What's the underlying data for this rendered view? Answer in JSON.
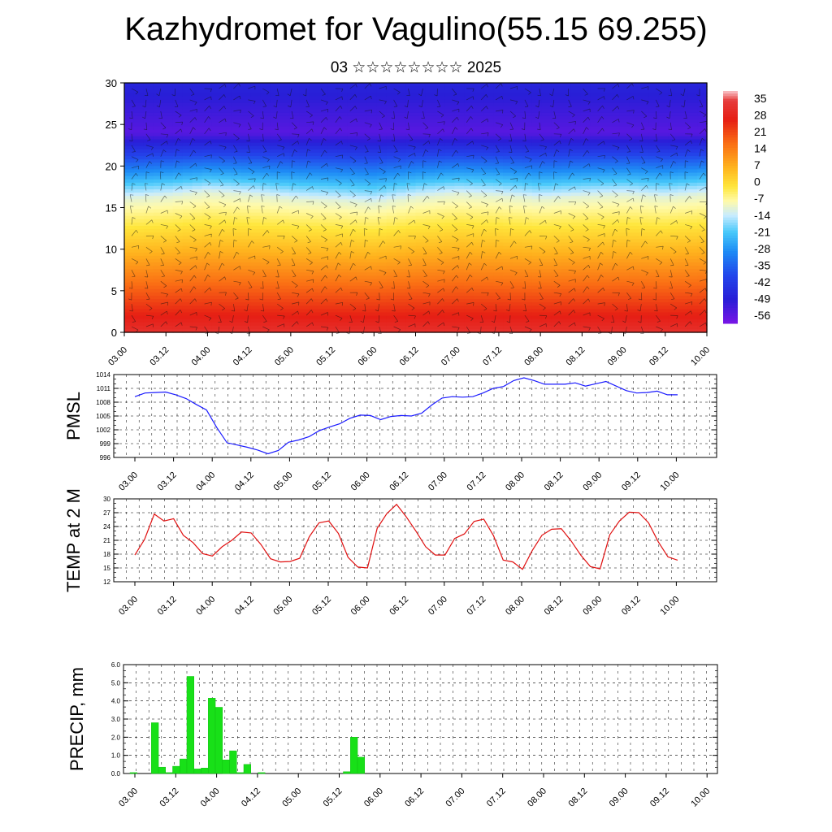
{
  "header": {
    "title": "Kazhydromet for Vagulino(55.15 69.255)",
    "subtitle": "03 ☆☆☆☆☆☆☆☆ 2025"
  },
  "time_labels": [
    "03.00",
    "03.12",
    "04.00",
    "04.12",
    "05.00",
    "05.12",
    "06.00",
    "06.12",
    "07.00",
    "07.12",
    "08.00",
    "08.12",
    "09.00",
    "09.12",
    "10.00"
  ],
  "chart_data": [
    {
      "type": "heatmap",
      "ylim": [
        0,
        30
      ],
      "yticks": [
        0,
        5,
        10,
        15,
        20,
        25,
        30
      ],
      "colorbar_labels": [
        "35",
        "28",
        "21",
        "14",
        "7",
        "0",
        "-7",
        "-14",
        "-21",
        "-28",
        "-35",
        "-42",
        "-49",
        "-56"
      ],
      "colorbar_range": [
        -60,
        37
      ],
      "colors": {
        "cold": "#2a1fd6",
        "mid": "#ffff70",
        "warm": "#e61010"
      },
      "freezing_level_km": [
        16.0,
        16.3,
        16.8,
        16.5,
        16.0,
        15.8,
        15.5,
        16.2,
        16.6,
        16.4,
        16.0,
        16.3,
        16.5,
        16.2,
        16.6
      ],
      "overlay": "wind barbs"
    },
    {
      "type": "line",
      "ylabel": "PMSL",
      "ylim": [
        996,
        1014
      ],
      "yticks": [
        996,
        999,
        1002,
        1005,
        1008,
        1011,
        1014
      ],
      "color": "#1a1aff",
      "values": [
        1009.2,
        1010.0,
        1010.1,
        1010.2,
        1009.6,
        1008.8,
        1007.5,
        1006.3,
        1002.5,
        999.2,
        998.7,
        998.2,
        997.6,
        996.8,
        997.5,
        999.3,
        999.8,
        1000.5,
        1001.8,
        1002.6,
        1003.3,
        1004.5,
        1005.2,
        1005.1,
        1004.2,
        1004.9,
        1005.1,
        1005.0,
        1005.6,
        1007.4,
        1008.9,
        1009.2,
        1009.1,
        1009.2,
        1010.0,
        1011.0,
        1011.4,
        1012.7,
        1013.3,
        1012.7,
        1011.9,
        1011.9,
        1011.9,
        1012.2,
        1011.5,
        1012.0,
        1012.5,
        1011.5,
        1010.5,
        1010.0,
        1010.1,
        1010.4,
        1009.6,
        1009.6
      ]
    },
    {
      "type": "line",
      "ylabel": "TEMP at 2 M",
      "ylim": [
        12,
        30
      ],
      "yticks": [
        12,
        15,
        18,
        21,
        24,
        27,
        30
      ],
      "color": "#e01010",
      "values": [
        17.8,
        21.2,
        26.7,
        25.2,
        25.7,
        22.1,
        20.5,
        18.1,
        17.6,
        19.6,
        21.0,
        22.8,
        22.6,
        20.1,
        17.0,
        16.3,
        16.4,
        17.1,
        21.8,
        24.8,
        25.2,
        22.5,
        17.3,
        15.2,
        15.0,
        23.6,
        26.8,
        28.8,
        26.1,
        23.0,
        19.6,
        17.8,
        17.8,
        21.4,
        22.4,
        25.1,
        25.6,
        22.0,
        16.7,
        16.3,
        14.7,
        18.8,
        22.1,
        23.4,
        23.5,
        20.9,
        17.8,
        15.3,
        14.8,
        22.2,
        25.2,
        27.1,
        27.0,
        24.8,
        20.7,
        17.4,
        16.7
      ]
    },
    {
      "type": "bar",
      "ylabel": "PRECIP, mm",
      "ylim": [
        0,
        6
      ],
      "yticks": [
        "0.0",
        "1.0",
        "2.0",
        "3.0",
        "4.0",
        "5.0",
        "6.0"
      ],
      "color": "#18e018",
      "values": [
        0.05,
        0,
        0,
        2.8,
        0.35,
        0.05,
        0.4,
        0.8,
        5.35,
        0.25,
        0.3,
        4.15,
        3.65,
        0.75,
        1.25,
        0.05,
        0.5,
        0,
        0.05,
        0,
        0,
        0,
        0,
        0,
        0,
        0,
        0,
        0,
        0,
        0,
        0.1,
        2.0,
        0.9,
        0,
        0,
        0,
        0,
        0,
        0,
        0,
        0,
        0,
        0,
        0,
        0,
        0,
        0,
        0,
        0,
        0,
        0,
        0,
        0,
        0,
        0,
        0,
        0,
        0,
        0,
        0,
        0,
        0,
        0,
        0,
        0,
        0
      ]
    }
  ]
}
